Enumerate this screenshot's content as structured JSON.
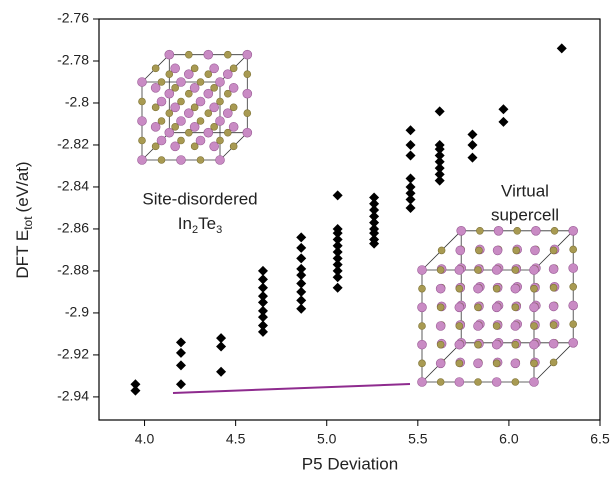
{
  "chart_data": {
    "type": "scatter",
    "xlabel": "P5 Deviation",
    "ylabel": {
      "main": "DFT E",
      "sub": "tot",
      "unit": "(eV/at)"
    },
    "annotations": {
      "left": {
        "line1": "Site-disordered",
        "formula": [
          "In",
          "2",
          "Te",
          "3"
        ]
      },
      "right": {
        "line1": "Virtual",
        "line2": "supercell"
      }
    },
    "xlim": [
      3.75,
      6.5
    ],
    "ylim": [
      -2.951,
      -2.76
    ],
    "xticks": [
      {
        "value": 4,
        "label": "4.0"
      },
      4.5,
      {
        "value": 5,
        "label": "5.0"
      },
      5.5,
      {
        "value": 6,
        "label": "6.0"
      },
      6.5
    ],
    "yticks": [
      -2.94,
      -2.92,
      -2.9,
      -2.88,
      -2.86,
      -2.84,
      -2.82,
      -2.8,
      -2.78,
      -2.76
    ],
    "series": [
      {
        "color": "#000000",
        "x": [
          3.95,
          3.95,
          4.2,
          4.2,
          4.2,
          4.2,
          4.42,
          4.42,
          4.42,
          4.65,
          4.65,
          4.65,
          4.65,
          4.65,
          4.65,
          4.65,
          4.65,
          4.65,
          4.86,
          4.86,
          4.86,
          4.86,
          4.86,
          4.86,
          4.86,
          4.86,
          4.86,
          5.06,
          5.06,
          5.06,
          5.06,
          5.06,
          5.06,
          5.06,
          5.06,
          5.06,
          5.06,
          5.06,
          5.26,
          5.26,
          5.26,
          5.26,
          5.26,
          5.26,
          5.26,
          5.26,
          5.26,
          5.46,
          5.46,
          5.46,
          5.46,
          5.46,
          5.46,
          5.46,
          5.46,
          5.62,
          5.62,
          5.62,
          5.62,
          5.62,
          5.62,
          5.62,
          5.62,
          5.8,
          5.8,
          5.8,
          5.97,
          5.97,
          6.29
        ],
        "values": [
          -2.934,
          -2.937,
          -2.914,
          -2.919,
          -2.925,
          -2.934,
          -2.912,
          -2.916,
          -2.928,
          -2.88,
          -2.884,
          -2.888,
          -2.892,
          -2.895,
          -2.899,
          -2.902,
          -2.906,
          -2.909,
          -2.864,
          -2.869,
          -2.874,
          -2.879,
          -2.882,
          -2.886,
          -2.89,
          -2.894,
          -2.898,
          -2.844,
          -2.86,
          -2.862,
          -2.865,
          -2.868,
          -2.871,
          -2.874,
          -2.877,
          -2.88,
          -2.883,
          -2.888,
          -2.845,
          -2.848,
          -2.851,
          -2.854,
          -2.857,
          -2.86,
          -2.862,
          -2.865,
          -2.867,
          -2.813,
          -2.82,
          -2.825,
          -2.836,
          -2.84,
          -2.843,
          -2.846,
          -2.85,
          -2.804,
          -2.82,
          -2.822,
          -2.825,
          -2.828,
          -2.831,
          -2.834,
          -2.837,
          -2.815,
          -2.82,
          -2.826,
          -2.803,
          -2.809,
          -2.774
        ]
      }
    ]
  }
}
